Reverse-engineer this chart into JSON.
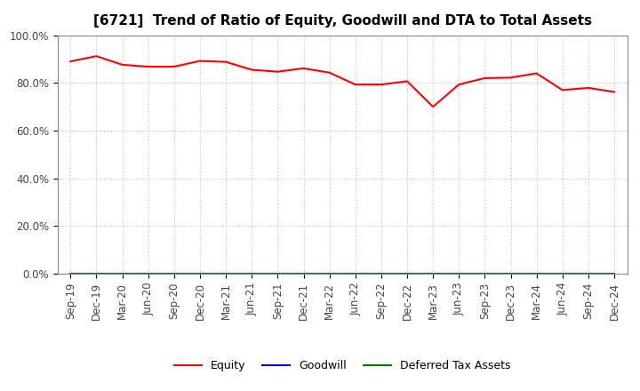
{
  "title": "[6721]  Trend of Ratio of Equity, Goodwill and DTA to Total Assets",
  "x_labels": [
    "Sep-19",
    "Dec-19",
    "Mar-20",
    "Jun-20",
    "Sep-20",
    "Dec-20",
    "Mar-21",
    "Jun-21",
    "Sep-21",
    "Dec-21",
    "Mar-22",
    "Jun-22",
    "Sep-22",
    "Dec-22",
    "Mar-23",
    "Jun-23",
    "Sep-23",
    "Dec-23",
    "Mar-24",
    "Jun-24",
    "Sep-24",
    "Dec-24"
  ],
  "equity_data": [
    0.89,
    0.912,
    0.876,
    0.868,
    0.868,
    0.892,
    0.888,
    0.855,
    0.847,
    0.861,
    0.843,
    0.793,
    0.793,
    0.807,
    0.7,
    0.793,
    0.82,
    0.822,
    0.84,
    0.77,
    0.779,
    0.762
  ],
  "goodwill_data": [
    0.0,
    0.0,
    0.0,
    0.0,
    0.0,
    0.0,
    0.0,
    0.0,
    0.0,
    0.0,
    0.0,
    0.0,
    0.0,
    0.0,
    0.0,
    0.0,
    0.0,
    0.0,
    0.0,
    0.0,
    0.0,
    0.0
  ],
  "dta_data": [
    0.0,
    0.0,
    0.0,
    0.0,
    0.0,
    0.0,
    0.0,
    0.0,
    0.0,
    0.0,
    0.0,
    0.0,
    0.0,
    0.0,
    0.0,
    0.0,
    0.0,
    0.0,
    0.0,
    0.0,
    0.0,
    0.0
  ],
  "equity_color": "#FF0000",
  "goodwill_color": "#0000CC",
  "dta_color": "#007700",
  "background_color": "#FFFFFF",
  "plot_bg_color": "#FFFFFF",
  "grid_color": "#BBBBBB",
  "ylim": [
    0.0,
    1.0
  ],
  "yticks": [
    0.0,
    0.2,
    0.4,
    0.6,
    0.8,
    1.0
  ],
  "title_fontsize": 11,
  "tick_fontsize": 8.5,
  "legend_labels": [
    "Equity",
    "Goodwill",
    "Deferred Tax Assets"
  ],
  "legend_fontsize": 9
}
